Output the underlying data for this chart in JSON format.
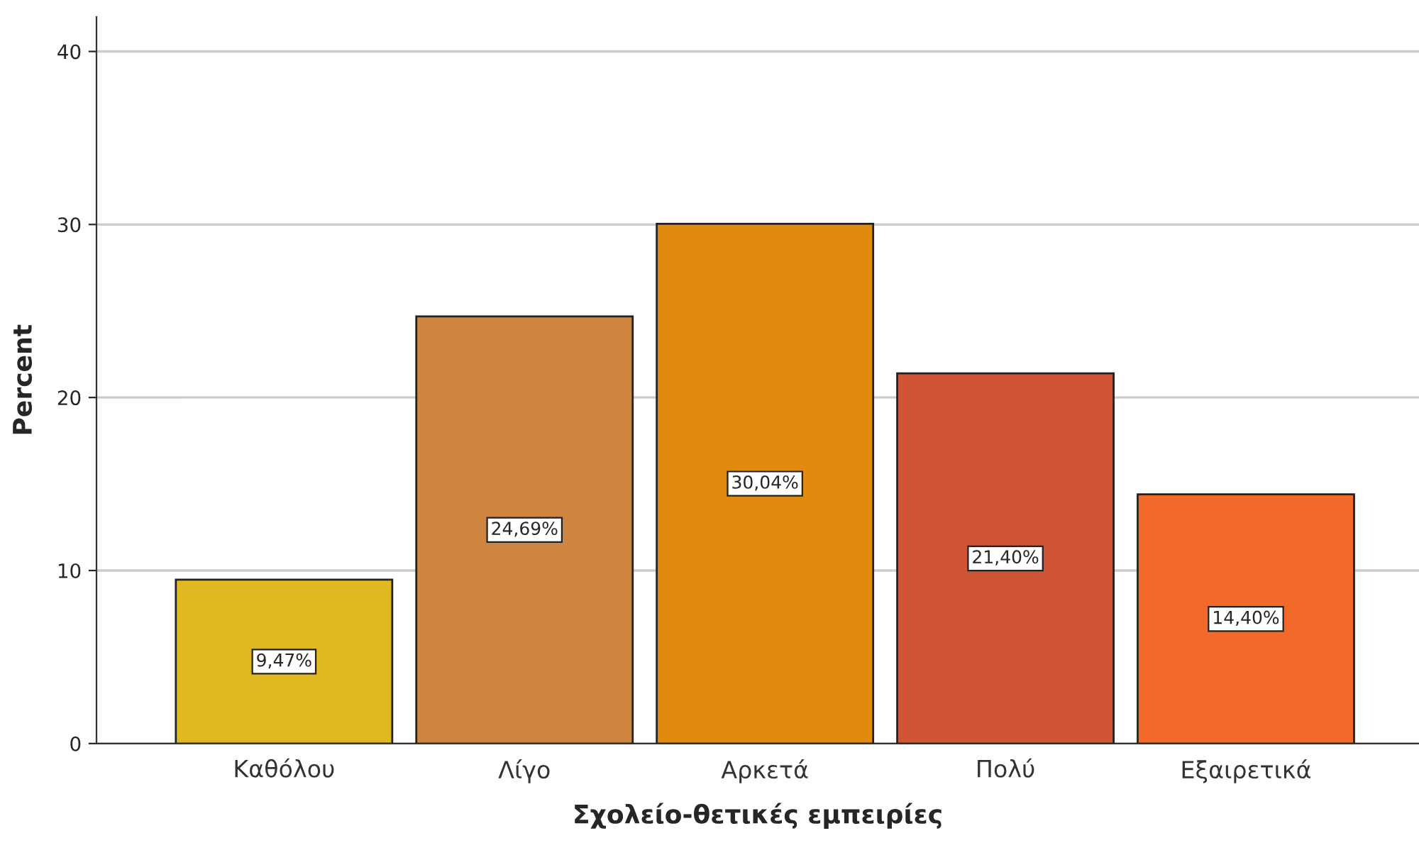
{
  "chart_data": {
    "type": "bar",
    "xlabel": "Σχολείο-θετικές εμπειρίες",
    "ylabel": "Percent",
    "categories": [
      "Καθόλου",
      "Λίγο",
      "Αρκετά",
      "Πολύ",
      "Εξαιρετικά"
    ],
    "values": [
      9.47,
      24.69,
      30.04,
      21.4,
      14.4
    ],
    "colors": [
      "#e0b820",
      "#cd853f",
      "#e08a10",
      "#d05535",
      "#f2692a"
    ],
    "value_labels": [
      "9,47%",
      "24,69%",
      "30,04%",
      "21,40%",
      "14,40%"
    ],
    "ylim": [
      0,
      42
    ],
    "yticks": [
      0,
      10,
      20,
      30,
      40
    ],
    "grid": "y"
  }
}
